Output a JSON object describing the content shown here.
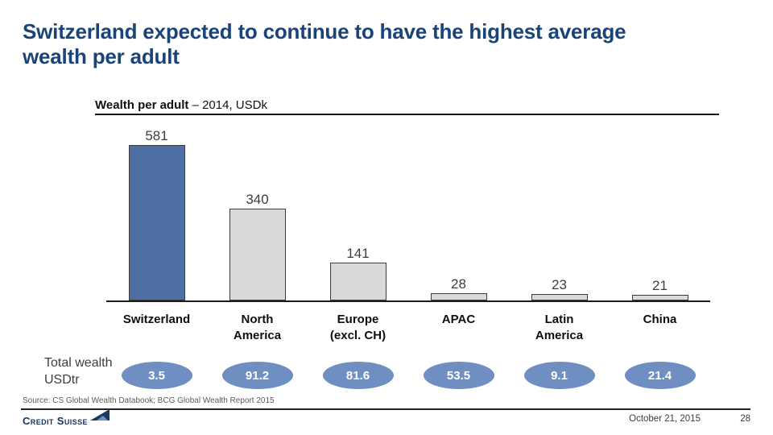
{
  "slide": {
    "title": "Switzerland expected to continue to have the highest average\nwealth per adult",
    "source": "Source: CS Global Wealth Databook; BCG Global Wealth Report 2015",
    "footer": {
      "brand": "Credit Suisse",
      "date": "October 21, 2015",
      "page": "28"
    }
  },
  "chart_data": {
    "type": "bar",
    "title": "Wealth per adult – 2014, USDk",
    "title_bold": "Wealth per adult",
    "title_suffix": " – 2014, USDk",
    "categories": [
      "Switzerland",
      "North\nAmerica",
      "Europe\n(excl. CH)",
      "APAC",
      "Latin\nAmerica",
      "China"
    ],
    "values": [
      581,
      340,
      141,
      28,
      23,
      21
    ],
    "ylim": [
      0,
      600
    ],
    "grid": false,
    "legend": "none",
    "highlight_index": 0,
    "colors": {
      "highlight_bar": "#4d6fa3",
      "bar": "#d9d9d9",
      "ellipse": "#6f8ec1",
      "title_navy": "#1a4379"
    },
    "secondary_row": {
      "label": "Total wealth\nUSDtr",
      "unit": "USDtr",
      "values": [
        "3.5",
        "91.2",
        "81.6",
        "53.5",
        "9.1",
        "21.4"
      ]
    }
  }
}
